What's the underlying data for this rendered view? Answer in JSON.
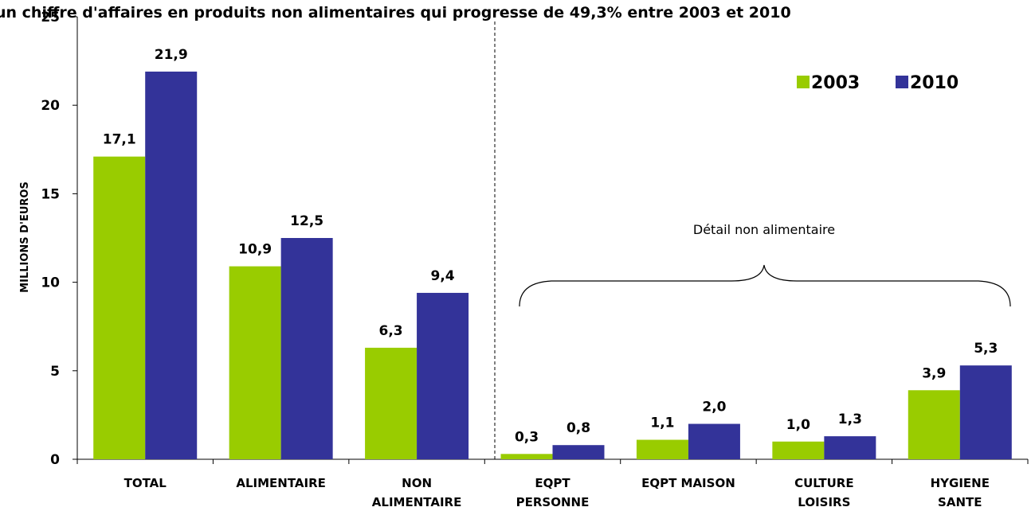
{
  "chart_data": {
    "type": "bar",
    "title": "un chiffre d'affaires en produits non alimentaires qui progresse de 49,3% entre 2003 et 2010",
    "xlabel": "",
    "ylabel": "MILLIONS D'EUROS",
    "ylim": [
      0,
      25
    ],
    "yticks": [
      "0",
      "5",
      "10",
      "15",
      "20",
      "25"
    ],
    "categories": [
      [
        "TOTAL"
      ],
      [
        "ALIMENTAIRE"
      ],
      [
        "NON",
        "ALIMENTAIRE"
      ],
      [
        "EQPT",
        "PERSONNE"
      ],
      [
        "EQPT MAISON"
      ],
      [
        "CULTURE",
        "LOISIRS"
      ],
      [
        "HYGIENE",
        "SANTE"
      ]
    ],
    "series": [
      {
        "name": "2003",
        "color": "#99cc00",
        "values": [
          17.1,
          10.9,
          6.3,
          0.3,
          1.1,
          1.0,
          3.9
        ],
        "labels": [
          "17,1",
          "10,9",
          "6,3",
          "0,3",
          "1,1",
          "1,0",
          "3,9"
        ]
      },
      {
        "name": "2010",
        "color": "#333399",
        "values": [
          21.9,
          12.5,
          9.4,
          0.8,
          2.0,
          1.3,
          5.3
        ],
        "labels": [
          "21,9",
          "12,5",
          "9,4",
          "0,8",
          "2,0",
          "1,3",
          "5,3"
        ]
      }
    ],
    "grid": false,
    "legend_position": "top-right",
    "annotation": "Détail non alimentaire"
  }
}
